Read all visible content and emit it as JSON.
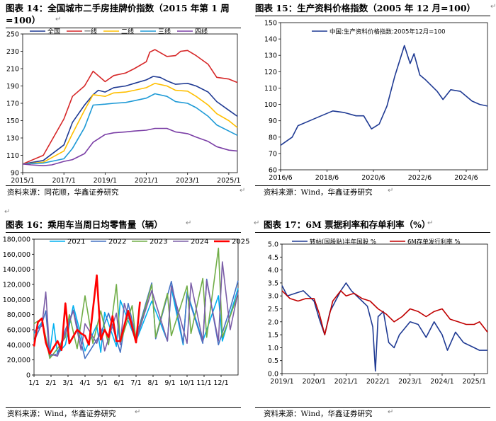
{
  "panels": {
    "p14": {
      "title": "图表 14：全国城市二手房挂牌价指数（2015 年第 1 周",
      "title2": "=100）",
      "source": "资料来源：同花顺，华鑫证券研究"
    },
    "p15": {
      "title": "图表 15：生产资料价格指数（2005 年 12 月=100）",
      "source": "资料来源：Wind，华鑫证券研究"
    },
    "p16": {
      "title": "图表 16：乘用车当周日均零售量（辆）",
      "source": "资料来源：Wind，华鑫证券研究"
    },
    "p17": {
      "title": "图表 17：6M 票据利率和存单利率（%）",
      "source": "资料来源：Wind，华鑫证券研究"
    }
  },
  "return_mark": "↵",
  "chart_data": [
    {
      "id": "p14",
      "type": "line",
      "x_ticks": [
        "2015/1",
        "2017/1",
        "2019/1",
        "2021/1",
        "2023/1",
        "2025/1"
      ],
      "xlim": [
        "2015/1",
        "2025/6"
      ],
      "y_ticks": [
        90,
        110,
        130,
        150,
        170,
        190,
        210,
        230,
        250
      ],
      "ylim": [
        90,
        250
      ],
      "legend": "top",
      "series": [
        {
          "name": "全国",
          "color": "#1f3a93",
          "x": [
            "2015/1",
            "2016/1",
            "2017/1",
            "2017/6",
            "2018/1",
            "2018/6",
            "2018/9",
            "2019/1",
            "2019/6",
            "2020/1",
            "2020/6",
            "2021/1",
            "2021/5",
            "2021/9",
            "2022/1",
            "2022/6",
            "2023/1",
            "2023/6",
            "2024/1",
            "2024/6",
            "2025/1",
            "2025/6"
          ],
          "values": [
            100,
            104,
            122,
            148,
            168,
            180,
            185,
            183,
            188,
            190,
            193,
            197,
            201,
            200,
            196,
            192,
            193,
            190,
            183,
            172,
            162,
            155
          ]
        },
        {
          "name": "一线",
          "color": "#d62728",
          "x": [
            "2015/1",
            "2016/1",
            "2017/1",
            "2017/6",
            "2018/1",
            "2018/6",
            "2019/1",
            "2019/6",
            "2020/1",
            "2020/6",
            "2021/1",
            "2021/3",
            "2021/6",
            "2022/1",
            "2022/6",
            "2022/9",
            "2023/1",
            "2023/6",
            "2024/1",
            "2024/6",
            "2025/1",
            "2025/6"
          ],
          "values": [
            100,
            110,
            152,
            178,
            190,
            207,
            195,
            202,
            205,
            210,
            218,
            229,
            232,
            224,
            225,
            230,
            231,
            225,
            215,
            200,
            198,
            194
          ]
        },
        {
          "name": "二线",
          "color": "#ffbf00",
          "x": [
            "2015/1",
            "2016/1",
            "2017/1",
            "2017/6",
            "2018/1",
            "2018/6",
            "2019/1",
            "2019/6",
            "2020/1",
            "2020/6",
            "2021/1",
            "2021/6",
            "2022/1",
            "2022/6",
            "2023/1",
            "2023/6",
            "2024/1",
            "2024/6",
            "2025/1",
            "2025/6"
          ],
          "values": [
            100,
            102,
            115,
            135,
            162,
            180,
            178,
            182,
            183,
            185,
            188,
            193,
            190,
            185,
            184,
            178,
            168,
            158,
            150,
            142
          ]
        },
        {
          "name": "三线",
          "color": "#1e9ad6",
          "x": [
            "2015/1",
            "2016/1",
            "2017/1",
            "2017/6",
            "2018/1",
            "2018/6",
            "2019/1",
            "2019/6",
            "2020/1",
            "2020/6",
            "2021/1",
            "2021/6",
            "2022/1",
            "2022/6",
            "2023/1",
            "2023/6",
            "2024/1",
            "2024/6",
            "2025/1",
            "2025/6"
          ],
          "values": [
            100,
            101,
            106,
            118,
            142,
            168,
            169,
            170,
            171,
            173,
            176,
            181,
            178,
            172,
            170,
            165,
            155,
            145,
            138,
            133
          ]
        },
        {
          "name": "四线",
          "color": "#7b3fa6",
          "x": [
            "2015/1",
            "2015/6",
            "2016/1",
            "2016/6",
            "2017/1",
            "2017/6",
            "2018/1",
            "2018/6",
            "2019/1",
            "2019/6",
            "2020/1",
            "2020/6",
            "2021/1",
            "2021/6",
            "2022/1",
            "2022/6",
            "2023/1",
            "2023/6",
            "2024/1",
            "2024/6",
            "2025/1",
            "2025/6"
          ],
          "values": [
            100,
            99,
            98,
            99,
            103,
            105,
            112,
            125,
            134,
            136,
            137,
            138,
            139,
            141,
            141,
            137,
            135,
            131,
            126,
            120,
            116,
            115
          ]
        }
      ]
    },
    {
      "id": "p15",
      "type": "line",
      "x_ticks": [
        "2016/6",
        "2018/6",
        "2020/6",
        "2022/6",
        "2024/6"
      ],
      "xlim": [
        "2016/6",
        "2025/5"
      ],
      "y_ticks": [
        60,
        70,
        80,
        90,
        100,
        110,
        120,
        130,
        140,
        150
      ],
      "ylim": [
        60,
        150
      ],
      "legend": "top-left",
      "series": [
        {
          "name": "中国:生产资料价格指数:2005年12月=100",
          "color": "#1f3a93",
          "x": [
            "2016/6",
            "2016/12",
            "2017/3",
            "2017/9",
            "2018/3",
            "2018/9",
            "2019/3",
            "2019/9",
            "2020/1",
            "2020/5",
            "2020/9",
            "2021/1",
            "2021/5",
            "2021/10",
            "2022/1",
            "2022/3",
            "2022/6",
            "2022/9",
            "2023/3",
            "2023/6",
            "2023/10",
            "2024/3",
            "2024/9",
            "2025/1",
            "2025/5"
          ],
          "values": [
            75,
            80,
            87,
            90,
            93,
            96,
            95,
            93,
            93,
            85,
            88,
            99,
            117,
            136,
            125,
            131,
            118,
            115,
            108,
            103,
            109,
            108,
            102,
            100,
            99
          ]
        }
      ]
    },
    {
      "id": "p16",
      "type": "line",
      "x_ticks": [
        "1/1",
        "2/1",
        "3/1",
        "4/1",
        "5/1",
        "6/1",
        "7/1",
        "8/1",
        "9/1",
        "10/1",
        "11/1",
        "12/1"
      ],
      "y_ticks": [
        "0",
        "20,000",
        "40,000",
        "60,000",
        "80,000",
        "100,000",
        "120,000",
        "140,000",
        "160,000",
        "180,000"
      ],
      "ylim": [
        0,
        180000
      ],
      "legend": "top",
      "series": [
        {
          "name": "2021",
          "color": "#00b0f0",
          "x": [
            0,
            2,
            4,
            5,
            6,
            8,
            10,
            13,
            16,
            17,
            18,
            21,
            22,
            26,
            30,
            34,
            35,
            38,
            39,
            43,
            47,
            48,
            50,
            52
          ],
          "values": [
            55000,
            70000,
            30000,
            68000,
            28000,
            40000,
            92000,
            32000,
            66000,
            30000,
            83000,
            38000,
            99000,
            45000,
            98000,
            45000,
            115000,
            40000,
            110000,
            45000,
            105000,
            45000,
            80000,
            115000
          ]
        },
        {
          "name": "2022",
          "color": "#4472c4",
          "x": [
            0,
            2,
            3,
            4,
            6,
            8,
            10,
            13,
            14,
            17,
            19,
            22,
            24,
            26,
            30,
            31,
            35,
            38,
            39,
            43,
            44,
            47,
            50,
            52
          ],
          "values": [
            45000,
            68000,
            85000,
            25000,
            28000,
            60000,
            86000,
            22000,
            30000,
            55000,
            82000,
            30000,
            95000,
            50000,
            122000,
            48000,
            124000,
            42000,
            108000,
            42000,
            127000,
            40000,
            88000,
            125000
          ]
        },
        {
          "name": "2023",
          "color": "#70ad47",
          "x": [
            0,
            2,
            3,
            4,
            6,
            8,
            9,
            11,
            13,
            15,
            17,
            19,
            21,
            22,
            25,
            26,
            30,
            31,
            34,
            35,
            39,
            40,
            43,
            44,
            47,
            48,
            50,
            52
          ],
          "values": [
            68000,
            75000,
            50000,
            22000,
            35000,
            50000,
            80000,
            35000,
            105000,
            42000,
            85000,
            40000,
            120000,
            42000,
            92000,
            45000,
            120000,
            50000,
            108000,
            52000,
            118000,
            55000,
            128000,
            50000,
            168000,
            50000,
            78000,
            108000
          ]
        },
        {
          "name": "2024",
          "color": "#7b5ea7",
          "x": [
            0,
            2,
            3,
            4,
            6,
            8,
            10,
            12,
            13,
            16,
            17,
            18,
            21,
            22,
            23,
            26,
            30,
            34,
            35,
            39,
            40,
            43,
            44,
            47,
            48,
            50,
            52
          ],
          "values": [
            58000,
            65000,
            110000,
            28000,
            25000,
            55000,
            85000,
            33000,
            68000,
            42000,
            62000,
            32000,
            82000,
            40000,
            95000,
            46000,
            112000,
            45000,
            118000,
            42000,
            122000,
            45000,
            125000,
            45000,
            150000,
            60000,
            110000
          ]
        },
        {
          "name": "2025",
          "color": "#ff0000",
          "x": [
            0,
            1,
            2,
            3,
            4,
            6,
            7,
            8,
            9,
            11,
            12,
            13,
            14,
            16,
            17,
            18,
            19,
            20,
            21,
            22,
            24,
            26,
            27
          ],
          "values": [
            38000,
            70000,
            75000,
            43000,
            28000,
            45000,
            33000,
            95000,
            42000,
            60000,
            55000,
            52000,
            40000,
            132000,
            47000,
            60000,
            50000,
            78000,
            45000,
            45000,
            85000,
            43000,
            97000
          ]
        }
      ]
    },
    {
      "id": "p17",
      "type": "line",
      "x_ticks": [
        "2019/1",
        "2020/1",
        "2021/1",
        "2022/1",
        "2023/1",
        "2024/1",
        "2025/1"
      ],
      "xlim": [
        "2019/1",
        "2025/6"
      ],
      "y_ticks": [
        "0.0",
        "0.5",
        "1.0",
        "1.5",
        "2.0",
        "2.5",
        "3.0",
        "3.5",
        "4.0",
        "4.5",
        "5.0"
      ],
      "ylim": [
        0,
        5
      ],
      "legend": "top",
      "series": [
        {
          "name": "转帖(国股贴)半年国股 %",
          "color": "#1f3a93",
          "x": [
            "2019/1",
            "2019/3",
            "2019/6",
            "2019/9",
            "2020/1",
            "2020/3",
            "2020/5",
            "2020/7",
            "2020/11",
            "2021/1",
            "2021/3",
            "2021/6",
            "2021/9",
            "2021/11",
            "2021/12",
            "2022/1",
            "2022/3",
            "2022/5",
            "2022/7",
            "2022/9",
            "2023/1",
            "2023/4",
            "2023/7",
            "2023/10",
            "2024/1",
            "2024/3",
            "2024/6",
            "2024/9",
            "2025/1",
            "2025/3",
            "2025/6"
          ],
          "values": [
            3.4,
            3.0,
            3.1,
            3.2,
            2.8,
            2.1,
            1.5,
            2.4,
            3.2,
            3.5,
            3.2,
            2.9,
            2.6,
            1.8,
            0.1,
            2.2,
            2.4,
            1.2,
            1.0,
            1.5,
            2.0,
            1.9,
            1.4,
            2.0,
            1.5,
            0.9,
            1.6,
            1.2,
            1.0,
            0.9,
            0.9
          ]
        },
        {
          "name": "6M存单发行利率 %",
          "color": "#c00000",
          "x": [
            "2019/1",
            "2019/4",
            "2019/7",
            "2019/10",
            "2020/1",
            "2020/3",
            "2020/5",
            "2020/8",
            "2020/11",
            "2021/1",
            "2021/4",
            "2021/7",
            "2021/10",
            "2022/1",
            "2022/4",
            "2022/7",
            "2022/10",
            "2023/1",
            "2023/4",
            "2023/7",
            "2023/10",
            "2024/1",
            "2024/4",
            "2024/7",
            "2024/10",
            "2025/1",
            "2025/3",
            "2025/6"
          ],
          "values": [
            3.2,
            2.9,
            2.8,
            2.9,
            2.9,
            2.3,
            1.5,
            2.8,
            3.2,
            3.0,
            3.1,
            2.9,
            2.8,
            2.5,
            2.3,
            2.0,
            2.2,
            2.5,
            2.4,
            2.2,
            2.4,
            2.5,
            2.1,
            2.0,
            1.9,
            1.9,
            2.0,
            1.6
          ]
        }
      ]
    }
  ]
}
